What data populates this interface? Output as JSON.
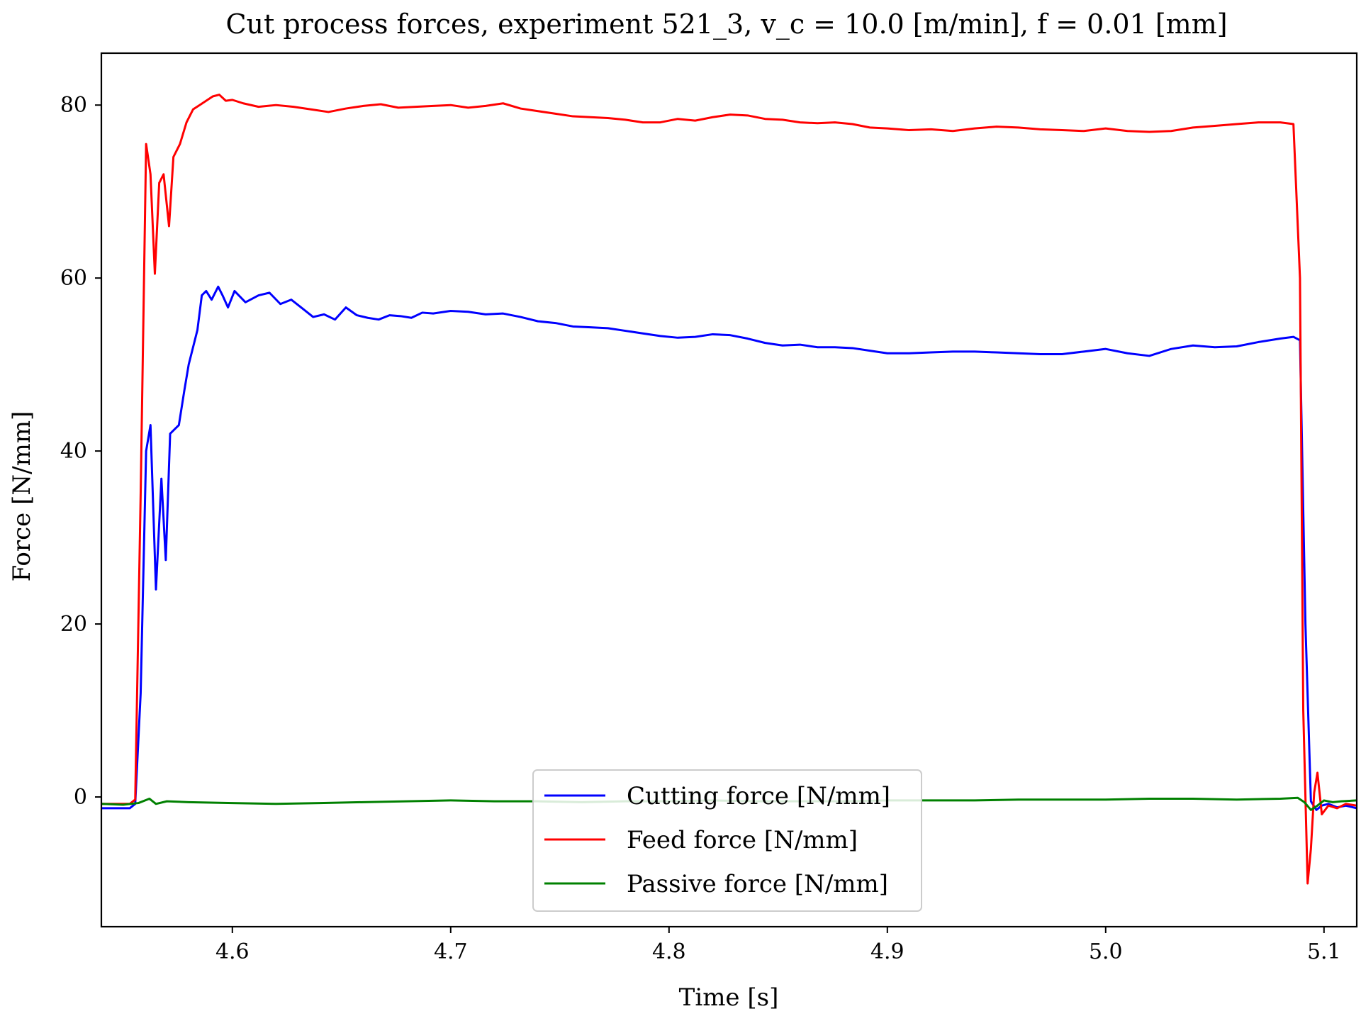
{
  "chart_data": {
    "type": "line",
    "title": "Cut process forces, experiment 521_3, v_c = 10.0 [m/min], f = 0.01 [mm]",
    "xlabel": "Time [s]",
    "ylabel": "Force [N/mm]",
    "xlim": [
      4.54,
      5.115
    ],
    "ylim": [
      -15,
      86
    ],
    "xticks": [
      4.6,
      4.7,
      4.8,
      4.9,
      5.0,
      5.1
    ],
    "xtick_labels": [
      "4.6",
      "4.7",
      "4.8",
      "4.9",
      "5.0",
      "5.1"
    ],
    "yticks": [
      0,
      20,
      40,
      60,
      80
    ],
    "ytick_labels": [
      "0",
      "20",
      "40",
      "60",
      "80"
    ],
    "grid": false,
    "legend_position": "bottom-center",
    "series": [
      {
        "name": "Cutting force [N/mm]",
        "color": "#0000ff",
        "x": [
          4.54,
          4.553,
          4.5555,
          4.558,
          4.5605,
          4.5625,
          4.565,
          4.5675,
          4.5695,
          4.5715,
          4.5735,
          4.5755,
          4.578,
          4.58,
          4.582,
          4.584,
          4.586,
          4.588,
          4.5905,
          4.5935,
          4.5955,
          4.598,
          4.601,
          4.606,
          4.612,
          4.617,
          4.622,
          4.627,
          4.632,
          4.637,
          4.642,
          4.647,
          4.652,
          4.657,
          4.662,
          4.667,
          4.672,
          4.677,
          4.682,
          4.687,
          4.692,
          4.7,
          4.708,
          4.716,
          4.724,
          4.732,
          4.74,
          4.748,
          4.756,
          4.764,
          4.772,
          4.78,
          4.788,
          4.796,
          4.804,
          4.812,
          4.82,
          4.828,
          4.836,
          4.844,
          4.852,
          4.86,
          4.868,
          4.876,
          4.884,
          4.892,
          4.9,
          4.91,
          4.92,
          4.93,
          4.94,
          4.95,
          4.96,
          4.97,
          4.98,
          4.99,
          5.0,
          5.01,
          5.02,
          5.03,
          5.04,
          5.05,
          5.06,
          5.07,
          5.08,
          5.086,
          5.089,
          5.0915,
          5.094,
          5.0965,
          5.099,
          5.102,
          5.106,
          5.11,
          5.115
        ],
        "y": [
          -1.3,
          -1.3,
          -0.8,
          12.0,
          40.0,
          43.0,
          24.0,
          36.8,
          27.4,
          42.0,
          42.5,
          43.0,
          47.0,
          50.0,
          52.0,
          54.0,
          58.0,
          58.5,
          57.5,
          59.0,
          58.0,
          56.6,
          58.5,
          57.2,
          58.0,
          58.3,
          57.0,
          57.5,
          56.5,
          55.5,
          55.8,
          55.2,
          56.6,
          55.7,
          55.4,
          55.2,
          55.7,
          55.6,
          55.4,
          56.0,
          55.9,
          56.2,
          56.1,
          55.8,
          55.9,
          55.5,
          55.0,
          54.8,
          54.4,
          54.3,
          54.2,
          53.9,
          53.6,
          53.3,
          53.1,
          53.2,
          53.5,
          53.4,
          53.0,
          52.5,
          52.2,
          52.3,
          52.0,
          52.0,
          51.9,
          51.6,
          51.3,
          51.3,
          51.4,
          51.5,
          51.5,
          51.4,
          51.3,
          51.2,
          51.2,
          51.5,
          51.8,
          51.3,
          51.0,
          51.8,
          52.2,
          52.0,
          52.1,
          52.6,
          53.0,
          53.2,
          52.8,
          20.0,
          -0.5,
          -1.5,
          -1.0,
          -0.8,
          -1.2,
          -1.0,
          -1.3
        ]
      },
      {
        "name": "Feed force [N/mm]",
        "color": "#ff0000",
        "x": [
          4.54,
          4.553,
          4.5555,
          4.558,
          4.5605,
          4.5625,
          4.5645,
          4.5665,
          4.5685,
          4.571,
          4.573,
          4.576,
          4.579,
          4.582,
          4.585,
          4.588,
          4.591,
          4.594,
          4.597,
          4.6,
          4.605,
          4.612,
          4.62,
          4.628,
          4.636,
          4.644,
          4.652,
          4.66,
          4.668,
          4.676,
          4.684,
          4.692,
          4.7,
          4.708,
          4.716,
          4.724,
          4.732,
          4.74,
          4.748,
          4.756,
          4.764,
          4.772,
          4.78,
          4.788,
          4.796,
          4.804,
          4.812,
          4.82,
          4.828,
          4.836,
          4.844,
          4.852,
          4.86,
          4.868,
          4.876,
          4.884,
          4.892,
          4.9,
          4.91,
          4.92,
          4.93,
          4.94,
          4.95,
          4.96,
          4.97,
          4.98,
          4.99,
          5.0,
          5.01,
          5.02,
          5.03,
          5.04,
          5.05,
          5.06,
          5.07,
          5.08,
          5.086,
          5.089,
          5.0905,
          5.0925,
          5.094,
          5.0955,
          5.097,
          5.099,
          5.102,
          5.106,
          5.11,
          5.115
        ],
        "y": [
          -0.8,
          -0.8,
          -0.3,
          35.0,
          75.5,
          72.0,
          60.5,
          71.0,
          72.0,
          66.0,
          74.0,
          75.5,
          78.0,
          79.5,
          80.0,
          80.5,
          81.0,
          81.2,
          80.5,
          80.6,
          80.2,
          79.8,
          80.0,
          79.8,
          79.5,
          79.2,
          79.6,
          79.9,
          80.1,
          79.7,
          79.8,
          79.9,
          80.0,
          79.7,
          79.9,
          80.2,
          79.6,
          79.3,
          79.0,
          78.7,
          78.6,
          78.5,
          78.3,
          78.0,
          78.0,
          78.4,
          78.2,
          78.6,
          78.9,
          78.8,
          78.4,
          78.3,
          78.0,
          77.9,
          78.0,
          77.8,
          77.4,
          77.3,
          77.1,
          77.2,
          77.0,
          77.3,
          77.5,
          77.4,
          77.2,
          77.1,
          77.0,
          77.3,
          77.0,
          76.9,
          77.0,
          77.4,
          77.6,
          77.8,
          78.0,
          78.0,
          77.8,
          60.0,
          10.0,
          -10.0,
          -6.0,
          0.5,
          2.8,
          -2.0,
          -1.0,
          -1.3,
          -0.8,
          -1.0
        ]
      },
      {
        "name": "Passive force [N/mm]",
        "color": "#008000",
        "x": [
          4.54,
          4.55,
          4.557,
          4.562,
          4.565,
          4.57,
          4.58,
          4.6,
          4.62,
          4.64,
          4.66,
          4.68,
          4.7,
          4.72,
          4.74,
          4.76,
          4.78,
          4.8,
          4.82,
          4.84,
          4.86,
          4.88,
          4.9,
          4.92,
          4.94,
          4.96,
          4.98,
          5.0,
          5.02,
          5.04,
          5.06,
          5.08,
          5.088,
          5.091,
          5.094,
          5.097,
          5.1,
          5.104,
          5.108,
          5.115
        ],
        "y": [
          -0.8,
          -0.9,
          -0.7,
          -0.2,
          -0.8,
          -0.5,
          -0.6,
          -0.7,
          -0.8,
          -0.7,
          -0.6,
          -0.5,
          -0.4,
          -0.5,
          -0.5,
          -0.6,
          -0.5,
          -0.5,
          -0.4,
          -0.5,
          -0.5,
          -0.5,
          -0.4,
          -0.4,
          -0.4,
          -0.3,
          -0.3,
          -0.3,
          -0.2,
          -0.2,
          -0.3,
          -0.2,
          -0.1,
          -0.6,
          -1.5,
          -1.0,
          -0.4,
          -0.6,
          -0.5,
          -0.4
        ]
      }
    ]
  }
}
